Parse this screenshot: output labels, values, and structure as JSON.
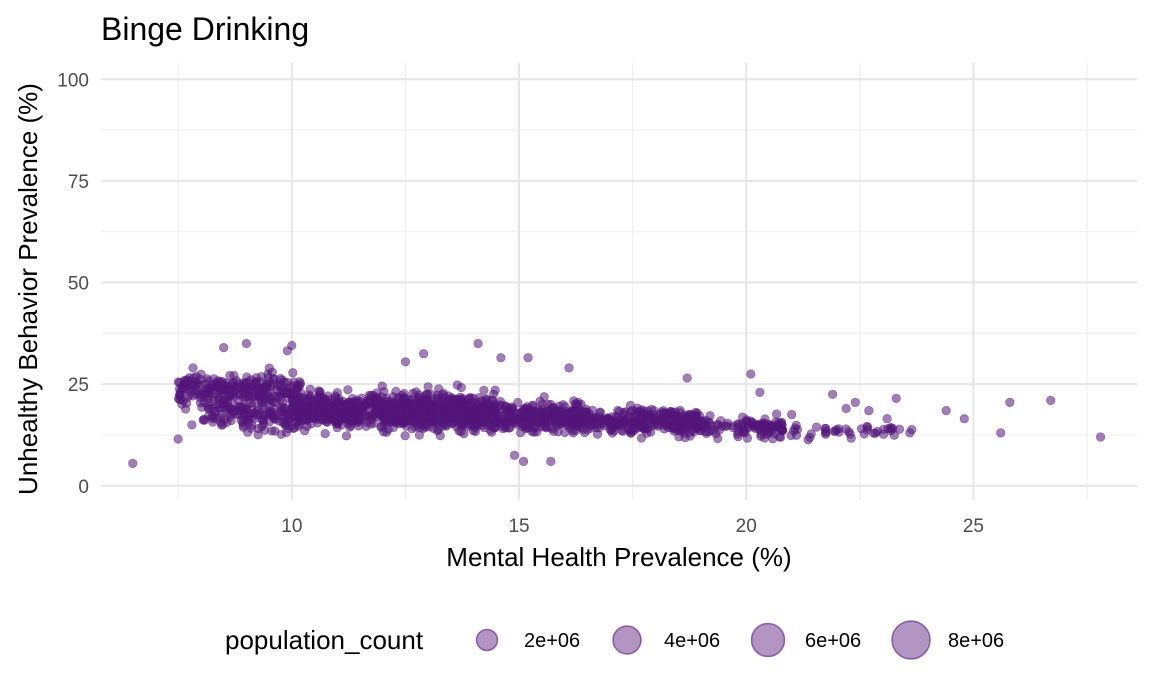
{
  "chart_data": {
    "type": "scatter",
    "title": "Binge Drinking",
    "xlabel": "Mental Health Prevalence (%)",
    "ylabel": "Unhealthy Behavior Prevalence (%)",
    "xlim": [
      5.8,
      28.6
    ],
    "ylim": [
      -3.5,
      104
    ],
    "x_ticks": [
      10,
      15,
      20,
      25
    ],
    "x_minor_ticks": [
      7.5,
      12.5,
      17.5,
      22.5,
      27.5
    ],
    "y_ticks": [
      0,
      25,
      50,
      75,
      100
    ],
    "y_minor_ticks": [
      12.5,
      37.5,
      62.5,
      87.5
    ],
    "grid": true,
    "point_color": "#54157a",
    "legend": {
      "position": "bottom",
      "title": "population_count",
      "entries": [
        {
          "label": "2e+06",
          "value": 2000000
        },
        {
          "label": "4e+06",
          "value": 4000000
        },
        {
          "label": "6e+06",
          "value": 6000000
        },
        {
          "label": "8e+06",
          "value": 8000000
        }
      ]
    },
    "outliers": [
      {
        "x": 6.5,
        "y": 5.5
      },
      {
        "x": 7.5,
        "y": 11.5
      },
      {
        "x": 7.8,
        "y": 15.0
      },
      {
        "x": 8.5,
        "y": 34.0
      },
      {
        "x": 9.0,
        "y": 35.0
      },
      {
        "x": 10.0,
        "y": 34.5
      },
      {
        "x": 9.9,
        "y": 33.2
      },
      {
        "x": 12.5,
        "y": 30.5
      },
      {
        "x": 12.9,
        "y": 32.5
      },
      {
        "x": 14.1,
        "y": 35.0
      },
      {
        "x": 14.6,
        "y": 31.5
      },
      {
        "x": 15.2,
        "y": 31.5
      },
      {
        "x": 15.1,
        "y": 6.0
      },
      {
        "x": 15.7,
        "y": 6.0
      },
      {
        "x": 14.9,
        "y": 7.5
      },
      {
        "x": 16.1,
        "y": 29.0
      },
      {
        "x": 18.7,
        "y": 26.5
      },
      {
        "x": 20.1,
        "y": 27.5
      },
      {
        "x": 20.3,
        "y": 23.0
      },
      {
        "x": 21.9,
        "y": 22.5
      },
      {
        "x": 22.4,
        "y": 20.5
      },
      {
        "x": 23.3,
        "y": 21.5
      },
      {
        "x": 24.4,
        "y": 18.5
      },
      {
        "x": 24.8,
        "y": 16.5
      },
      {
        "x": 25.8,
        "y": 20.5
      },
      {
        "x": 25.6,
        "y": 13.0
      },
      {
        "x": 26.7,
        "y": 21.0
      },
      {
        "x": 27.8,
        "y": 12.0
      },
      {
        "x": 23.6,
        "y": 13.0
      },
      {
        "x": 23.1,
        "y": 16.5
      },
      {
        "x": 22.2,
        "y": 19.0
      },
      {
        "x": 21.0,
        "y": 17.5
      },
      {
        "x": 22.7,
        "y": 18.5
      }
    ],
    "clusters": [
      {
        "x_range": [
          7.5,
          10.2
        ],
        "y_center": 23.5,
        "y_spread": 3.6,
        "count": 260
      },
      {
        "x_range": [
          8.0,
          11.5
        ],
        "y_center": 17.5,
        "y_spread": 3.2,
        "count": 220
      },
      {
        "x_range": [
          10.0,
          14.5
        ],
        "y_center": 19.0,
        "y_spread": 3.4,
        "count": 650
      },
      {
        "x_range": [
          12.0,
          16.5
        ],
        "y_center": 17.0,
        "y_spread": 2.8,
        "count": 520
      },
      {
        "x_range": [
          16.0,
          19.0
        ],
        "y_center": 16.0,
        "y_spread": 2.4,
        "count": 300
      },
      {
        "x_range": [
          18.5,
          20.8
        ],
        "y_center": 14.5,
        "y_spread": 1.9,
        "count": 130
      },
      {
        "x_range": [
          20.5,
          23.7
        ],
        "y_center": 13.5,
        "y_spread": 1.3,
        "count": 45
      }
    ]
  }
}
